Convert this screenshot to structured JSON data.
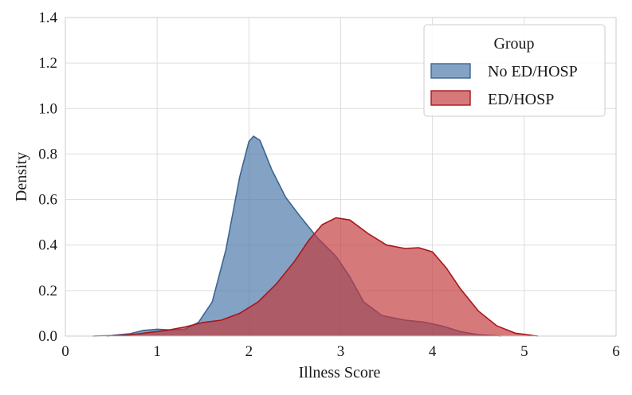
{
  "chart_data": {
    "type": "area",
    "title": "",
    "xlabel": "Illness Score",
    "ylabel": "Density",
    "xlim": [
      0,
      6
    ],
    "ylim": [
      0,
      1.4
    ],
    "xticks": [
      0,
      1,
      2,
      3,
      4,
      5,
      6
    ],
    "yticks": [
      0.0,
      0.2,
      0.4,
      0.6,
      0.8,
      1.0,
      1.2,
      1.4
    ],
    "ytick_labels": [
      "0.0",
      "0.2",
      "0.4",
      "0.6",
      "0.8",
      "1.0",
      "1.2",
      "1.4"
    ],
    "grid": true,
    "legend": {
      "title": "Group",
      "position": "top-right"
    },
    "series": [
      {
        "name": "No ED/HOSP",
        "fill": "#4a78a8",
        "stroke": "#3b6592",
        "points": [
          [
            0.3,
            0.0
          ],
          [
            0.5,
            0.002
          ],
          [
            0.7,
            0.01
          ],
          [
            0.85,
            0.025
          ],
          [
            1.0,
            0.03
          ],
          [
            1.15,
            0.027
          ],
          [
            1.3,
            0.03
          ],
          [
            1.45,
            0.06
          ],
          [
            1.6,
            0.15
          ],
          [
            1.75,
            0.38
          ],
          [
            1.9,
            0.7
          ],
          [
            2.0,
            0.855
          ],
          [
            2.05,
            0.878
          ],
          [
            2.12,
            0.86
          ],
          [
            2.25,
            0.73
          ],
          [
            2.4,
            0.61
          ],
          [
            2.55,
            0.53
          ],
          [
            2.75,
            0.43
          ],
          [
            2.95,
            0.35
          ],
          [
            3.1,
            0.26
          ],
          [
            3.25,
            0.15
          ],
          [
            3.45,
            0.09
          ],
          [
            3.7,
            0.07
          ],
          [
            3.9,
            0.062
          ],
          [
            4.1,
            0.045
          ],
          [
            4.3,
            0.02
          ],
          [
            4.5,
            0.006
          ],
          [
            4.75,
            0.0
          ]
        ]
      },
      {
        "name": "ED/HOSP",
        "fill": "#c23a3d",
        "stroke": "#a8171c",
        "points": [
          [
            0.45,
            0.0
          ],
          [
            0.7,
            0.005
          ],
          [
            0.9,
            0.015
          ],
          [
            1.1,
            0.025
          ],
          [
            1.3,
            0.04
          ],
          [
            1.5,
            0.06
          ],
          [
            1.7,
            0.07
          ],
          [
            1.9,
            0.1
          ],
          [
            2.1,
            0.15
          ],
          [
            2.3,
            0.23
          ],
          [
            2.5,
            0.33
          ],
          [
            2.65,
            0.42
          ],
          [
            2.8,
            0.49
          ],
          [
            2.95,
            0.52
          ],
          [
            3.1,
            0.51
          ],
          [
            3.3,
            0.45
          ],
          [
            3.5,
            0.4
          ],
          [
            3.7,
            0.385
          ],
          [
            3.85,
            0.388
          ],
          [
            4.0,
            0.37
          ],
          [
            4.15,
            0.3
          ],
          [
            4.3,
            0.21
          ],
          [
            4.5,
            0.11
          ],
          [
            4.7,
            0.045
          ],
          [
            4.9,
            0.013
          ],
          [
            5.1,
            0.002
          ],
          [
            5.15,
            0.0
          ]
        ]
      }
    ]
  }
}
